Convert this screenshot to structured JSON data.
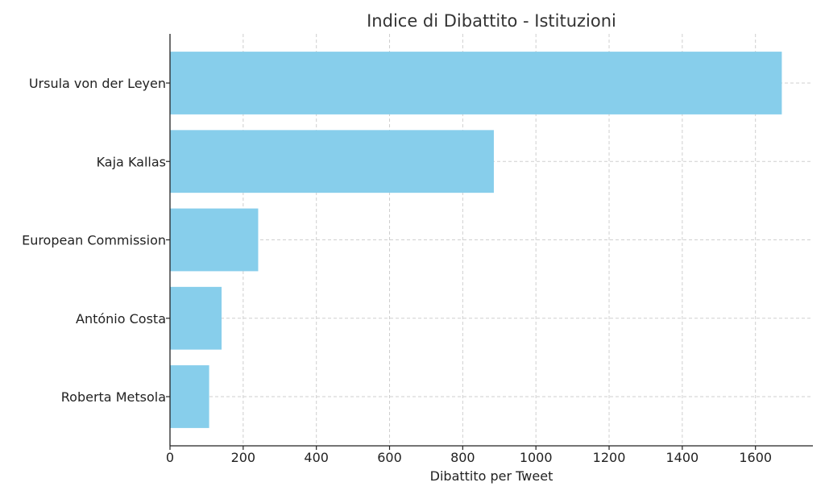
{
  "chart_data": {
    "type": "bar",
    "orientation": "horizontal",
    "title": "Indice di Dibattito - Istituzioni",
    "xlabel": "Dibattito per Tweet",
    "ylabel": "",
    "categories": [
      "Ursula von der Leyen",
      "Kaja Kallas",
      "European Commission",
      "António Costa",
      "Roberta Metsola"
    ],
    "values": [
      1672,
      885,
      241,
      141,
      107
    ],
    "xlim": [
      0,
      1757
    ],
    "xticks": [
      0,
      200,
      400,
      600,
      800,
      1000,
      1200,
      1400,
      1600
    ],
    "grid": true,
    "bar_color": "#87ceeb"
  }
}
